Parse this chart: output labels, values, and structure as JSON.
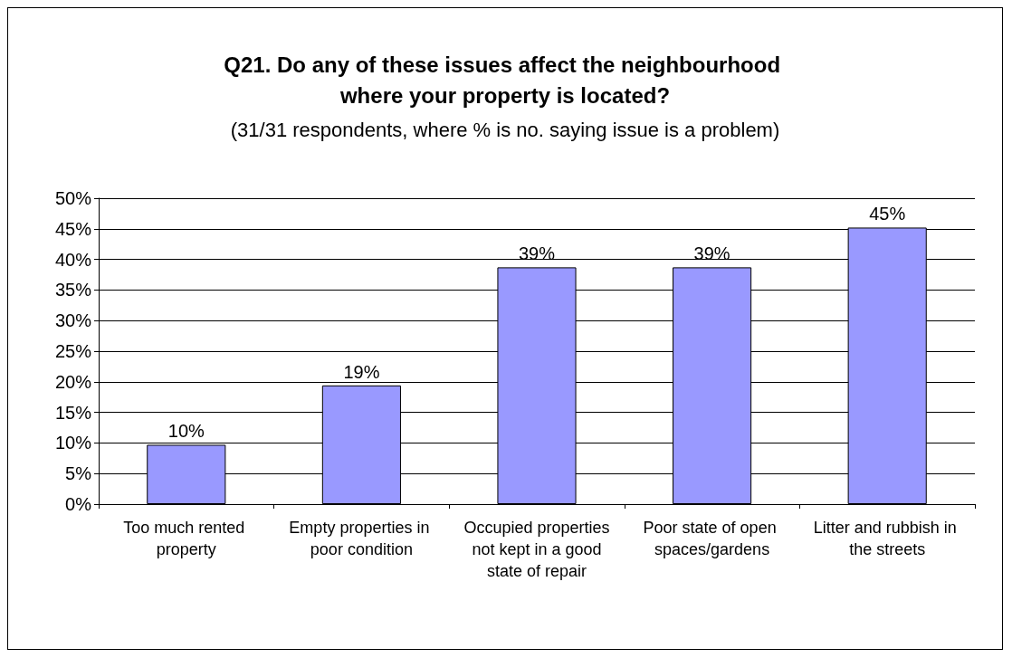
{
  "chart_data": {
    "type": "bar",
    "title": "Q21. Do any of these issues affect the neighbourhood where your property is located?",
    "subtitle": "(31/31 respondents, where % is no. saying issue is a problem)",
    "categories": [
      "Too much rented property",
      "Empty properties in poor condition",
      "Occupied properties not kept in a good state of repair",
      "Poor state of open spaces/gardens",
      "Litter and rubbish in the streets"
    ],
    "values": [
      9.7,
      19.4,
      38.7,
      38.7,
      45.2
    ],
    "value_labels": [
      "10%",
      "19%",
      "39%",
      "39%",
      "45%"
    ],
    "color": "#9999ff",
    "ylim": [
      0,
      50
    ],
    "yticks": [
      {
        "value": 0,
        "label": "0%"
      },
      {
        "value": 5,
        "label": "5%"
      },
      {
        "value": 10,
        "label": "10%"
      },
      {
        "value": 15,
        "label": "15%"
      },
      {
        "value": 20,
        "label": "20%"
      },
      {
        "value": 25,
        "label": "25%"
      },
      {
        "value": 30,
        "label": "30%"
      },
      {
        "value": 35,
        "label": "35%"
      },
      {
        "value": 40,
        "label": "40%"
      },
      {
        "value": 45,
        "label": "45%"
      },
      {
        "value": 50,
        "label": "50%"
      }
    ],
    "grid": "y"
  }
}
